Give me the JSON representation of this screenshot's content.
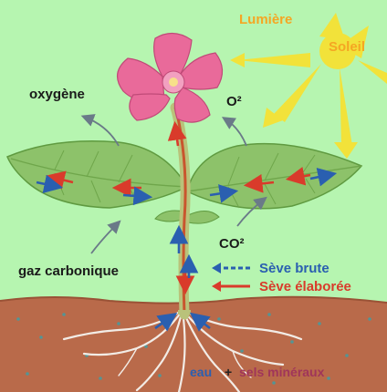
{
  "labels": {
    "lumiere": "Lumière",
    "soleil": "Soleil",
    "oxygene": "oxygène",
    "o2": "O²",
    "co2": "CO²",
    "gaz_carbonique": "gaz carbonique",
    "seve_brute": "Sève brute",
    "seve_elaboree": "Sève élaborée",
    "eau": "eau",
    "plus": "+",
    "sels_mineraux": "sels minéraux"
  },
  "colors": {
    "background": "#b6f5b0",
    "sun": "#f2e23a",
    "sun_text": "#f5a623",
    "leaf": "#8dc26a",
    "stem": "#c9552e",
    "petal": "#e96a9a",
    "soil": "#b96a4a",
    "seve_brute": "#2a5fb0",
    "seve_elaboree": "#d93b2b",
    "gas_arrow": "#6a7a88"
  }
}
